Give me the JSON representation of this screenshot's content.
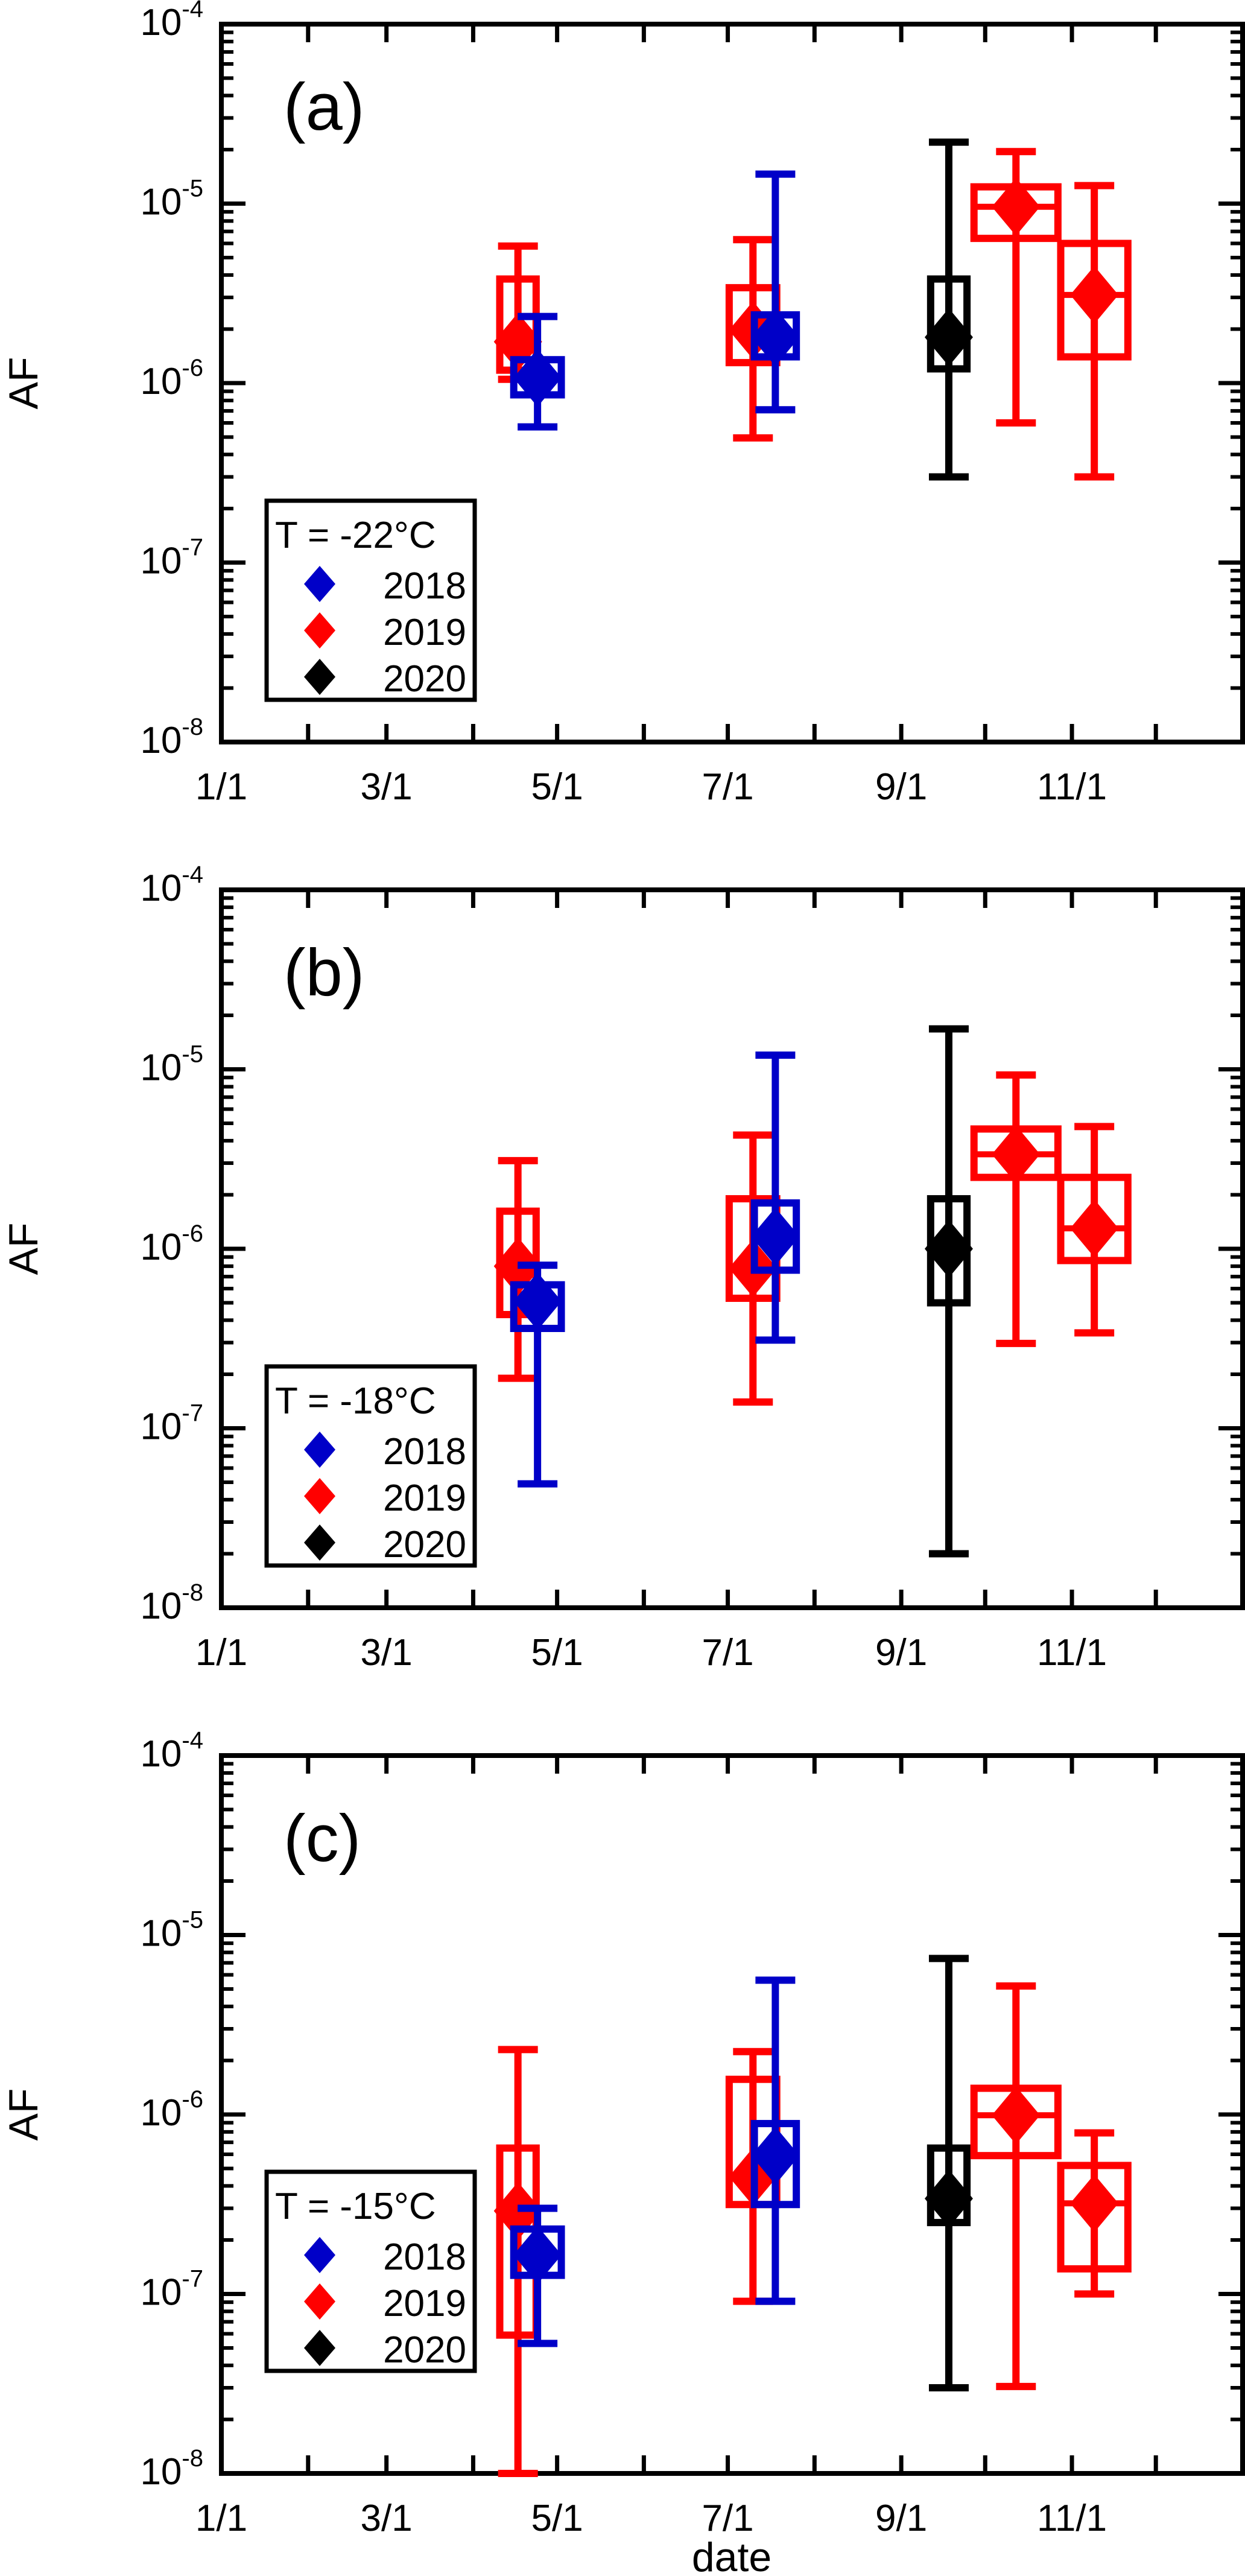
{
  "chart_data": {
    "type": "scatter",
    "xlabel": "date",
    "ylabel": "AF",
    "x_unit": "day of year",
    "xlim": [
      0,
      365
    ],
    "ylim": [
      1e-08,
      0.0001
    ],
    "yscale": "log",
    "x_ticks": [
      {
        "day": 0,
        "label": "1/1"
      },
      {
        "day": 59,
        "label": "3/1"
      },
      {
        "day": 120,
        "label": "5/1"
      },
      {
        "day": 181,
        "label": "7/1"
      },
      {
        "day": 243,
        "label": "9/1"
      },
      {
        "day": 304,
        "label": "11/1"
      }
    ],
    "y_ticks": [
      {
        "value": 0.0001,
        "base": "10",
        "exp": "-4"
      },
      {
        "value": 1e-05,
        "base": "10",
        "exp": "-5"
      },
      {
        "value": 1e-06,
        "base": "10",
        "exp": "-6"
      },
      {
        "value": 1e-07,
        "base": "10",
        "exp": "-7"
      },
      {
        "value": 1e-08,
        "base": "10",
        "exp": "-8"
      }
    ],
    "legend": {
      "placement": "bottom-left",
      "entries": [
        {
          "label": "2018",
          "color": "#0000c8"
        },
        {
          "label": "2019",
          "color": "#ff0000"
        },
        {
          "label": "2020",
          "color": "#000000"
        }
      ]
    },
    "panels": [
      {
        "label": "(a)",
        "legend_title": "T = -22°C",
        "points": [
          {
            "series": "2019",
            "day": 106,
            "y": 1.7e-06,
            "box": [
              1.18e-06,
              3.8e-06
            ],
            "err": [
              1.05e-06,
              5.8e-06
            ],
            "box_width_days": 13
          },
          {
            "series": "2018",
            "day": 113,
            "y": 1.07e-06,
            "box": [
              8.6e-07,
              1.35e-06
            ],
            "err": [
              5.7e-07,
              2.35e-06
            ],
            "box_width_days": 17
          },
          {
            "series": "2019",
            "day": 190,
            "y": 1.97e-06,
            "box": [
              1.3e-06,
              3.4e-06
            ],
            "err": [
              4.95e-07,
              6.3e-06
            ],
            "box_width_days": 17
          },
          {
            "series": "2018",
            "day": 198,
            "y": 1.8e-06,
            "box": [
              1.4e-06,
              2.4e-06
            ],
            "err": [
              7.1e-07,
              1.46e-05
            ],
            "box_width_days": 15
          },
          {
            "series": "2020",
            "day": 260,
            "y": 1.8e-06,
            "box": [
              1.2e-06,
              3.8e-06
            ],
            "err": [
              3e-07,
              2.2e-05
            ],
            "box_width_days": 13
          },
          {
            "series": "2019",
            "day": 284,
            "y": 9.6e-06,
            "box": [
              6.4e-06,
              1.24e-05
            ],
            "err": [
              6e-07,
              1.95e-05
            ],
            "box_width_days": 30
          },
          {
            "series": "2019",
            "day": 312,
            "y": 3.1e-06,
            "box": [
              1.4e-06,
              6e-06
            ],
            "err": [
              3e-07,
              1.26e-05
            ],
            "box_width_days": 24
          }
        ]
      },
      {
        "label": "(b)",
        "legend_title": "T = -18°C",
        "points": [
          {
            "series": "2019",
            "day": 106,
            "y": 8e-07,
            "box": [
              4.3e-07,
              1.62e-06
            ],
            "err": [
              1.9e-07,
              3.1e-06
            ],
            "box_width_days": 13
          },
          {
            "series": "2018",
            "day": 113,
            "y": 5.1e-07,
            "box": [
              3.6e-07,
              6.3e-07
            ],
            "err": [
              4.9e-08,
              8.1e-07
            ],
            "box_width_days": 17
          },
          {
            "series": "2019",
            "day": 190,
            "y": 7.8e-07,
            "box": [
              5.3e-07,
              1.9e-06
            ],
            "err": [
              1.4e-07,
              4.3e-06
            ],
            "box_width_days": 17
          },
          {
            "series": "2018",
            "day": 198,
            "y": 1.17e-06,
            "box": [
              7.6e-07,
              1.8e-06
            ],
            "err": [
              3.1e-07,
              1.2e-05
            ],
            "box_width_days": 15
          },
          {
            "series": "2020",
            "day": 260,
            "y": 1e-06,
            "box": [
              5e-07,
              1.9e-06
            ],
            "err": [
              2e-08,
              1.68e-05
            ],
            "box_width_days": 13
          },
          {
            "series": "2019",
            "day": 284,
            "y": 3.36e-06,
            "box": [
              2.5e-06,
              4.65e-06
            ],
            "err": [
              2.97e-07,
              9.3e-06
            ],
            "box_width_days": 30
          },
          {
            "series": "2019",
            "day": 312,
            "y": 1.3e-06,
            "box": [
              8.6e-07,
              2.5e-06
            ],
            "err": [
              3.4e-07,
              4.8e-06
            ],
            "box_width_days": 24
          }
        ]
      },
      {
        "label": "(c)",
        "legend_title": "T = -15°C",
        "points": [
          {
            "series": "2019",
            "day": 106,
            "y": 2.9e-07,
            "box": [
              5.9e-08,
              6.5e-07
            ],
            "err": [
              1e-08,
              2.3e-06
            ],
            "box_width_days": 13
          },
          {
            "series": "2018",
            "day": 113,
            "y": 1.65e-07,
            "box": [
              1.27e-07,
              2.3e-07
            ],
            "err": [
              5.3e-08,
              3e-07
            ],
            "box_width_days": 17
          },
          {
            "series": "2019",
            "day": 190,
            "y": 4.5e-07,
            "box": [
              3.15e-07,
              1.57e-06
            ],
            "err": [
              9.1e-08,
              2.24e-06
            ],
            "box_width_days": 17
          },
          {
            "series": "2018",
            "day": 198,
            "y": 5.9e-07,
            "box": [
              3.15e-07,
              8.9e-07
            ],
            "err": [
              9.1e-08,
              5.6e-06
            ],
            "box_width_days": 15
          },
          {
            "series": "2020",
            "day": 260,
            "y": 3.4e-07,
            "box": [
              2.5e-07,
              6.5e-07
            ],
            "err": [
              3e-08,
              7.4e-06
            ],
            "box_width_days": 13
          },
          {
            "series": "2019",
            "day": 284,
            "y": 9.9e-07,
            "box": [
              5.9e-07,
              1.4e-06
            ],
            "err": [
              3.05e-08,
              5.2e-06
            ],
            "box_width_days": 30
          },
          {
            "series": "2019",
            "day": 312,
            "y": 3.2e-07,
            "box": [
              1.38e-07,
              5.2e-07
            ],
            "err": [
              1e-07,
              7.9e-07
            ],
            "box_width_days": 24
          }
        ]
      }
    ]
  }
}
